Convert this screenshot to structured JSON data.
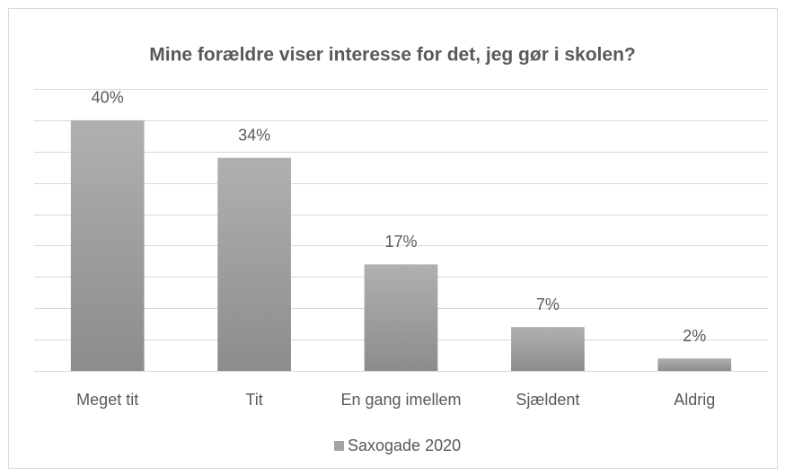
{
  "chart_data": {
    "type": "bar",
    "title": "Mine forældre viser interesse for det, jeg gør i skolen?",
    "categories": [
      "Meget tit",
      "Tit",
      "En gang imellem",
      "Sjældent",
      "Aldrig"
    ],
    "series": [
      {
        "name": "Saxogade 2020",
        "color": "#a5a5a5",
        "values": [
          40,
          34,
          17,
          7,
          2
        ],
        "value_labels": [
          "40%",
          "34%",
          "17%",
          "7%",
          "2%"
        ]
      }
    ],
    "ylim": [
      0,
      45
    ],
    "yticks": [
      0,
      5,
      10,
      15,
      20,
      25,
      30,
      35,
      40,
      45
    ],
    "grid": true,
    "legend": "bottom"
  }
}
